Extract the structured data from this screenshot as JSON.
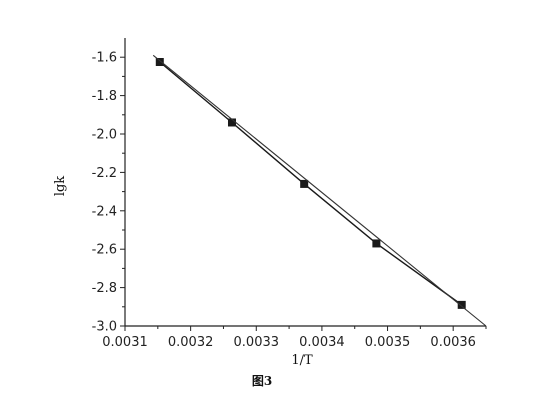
{
  "chart_data": {
    "type": "line",
    "title": "",
    "xlabel": "1/T",
    "ylabel": "lgk",
    "caption": "图3",
    "xlim": [
      0.0031,
      0.00365
    ],
    "ylim": [
      -3.0,
      -1.5
    ],
    "xticks": [
      0.0031,
      0.0032,
      0.0033,
      0.0034,
      0.0035,
      0.0036
    ],
    "xtick_labels": [
      "0.0031",
      "0.0032",
      "0.0033",
      "0.0034",
      "0.0035",
      "0.0036"
    ],
    "yticks": [
      -1.6,
      -1.8,
      -2.0,
      -2.2,
      -2.4,
      -2.6,
      -2.8,
      -3.0
    ],
    "ytick_labels": [
      "-1.6",
      "-1.8",
      "-2.0",
      "-2.2",
      "-2.4",
      "-2.6",
      "-2.8",
      "-3.0"
    ],
    "grid": false,
    "legend": "none",
    "series": [
      {
        "type": "line",
        "marker": "square",
        "x": [
          0.003153,
          0.003263,
          0.003373,
          0.003483,
          0.003613
        ],
        "y": [
          -1.625,
          -1.94,
          -2.26,
          -2.57,
          -2.89
        ]
      },
      {
        "type": "line",
        "marker": "none",
        "x": [
          0.003143,
          0.00365
        ],
        "y": [
          -1.59,
          -3.0
        ]
      }
    ],
    "colors": {
      "series_line": "#1a1a1a",
      "fit_line": "#333333",
      "axis": "#222222"
    }
  }
}
